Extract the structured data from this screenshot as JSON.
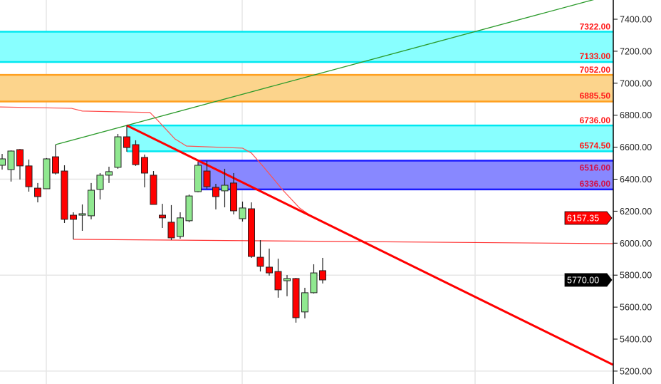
{
  "chart_data": {
    "type": "candlestick",
    "ylim": [
      5150,
      7500
    ],
    "y_ticks": [
      "7400.00",
      "7200.00",
      "7000.00",
      "6800.00",
      "6600.00",
      "6400.00",
      "6200.00",
      "6000.00",
      "5800.00",
      "5600.00",
      "5400.00",
      "5200.00"
    ],
    "grid": true,
    "colors": {
      "up": "#90e890",
      "down": "#ff0000",
      "zone_cyan": "#00ffff",
      "zone_orange": "#ffa500",
      "zone_blue": "#0000ff",
      "trend_green": "#2a9a2a",
      "trend_red": "#ff0000"
    },
    "candles": [
      {
        "o": 6487,
        "h": 6558,
        "l": 6460,
        "c": 6527
      },
      {
        "o": 6460,
        "h": 6580,
        "l": 6385,
        "c": 6576
      },
      {
        "o": 6585,
        "h": 6589,
        "l": 6398,
        "c": 6483
      },
      {
        "o": 6483,
        "h": 6523,
        "l": 6322,
        "c": 6353
      },
      {
        "o": 6344,
        "h": 6376,
        "l": 6255,
        "c": 6291
      },
      {
        "o": 6340,
        "h": 6532,
        "l": 6340,
        "c": 6527
      },
      {
        "o": 6540,
        "h": 6616,
        "l": 6429,
        "c": 6438
      },
      {
        "o": 6451,
        "h": 6487,
        "l": 6126,
        "c": 6149
      },
      {
        "o": 6175,
        "h": 6193,
        "l": 6024,
        "c": 6149
      },
      {
        "o": 6175,
        "h": 6242,
        "l": 6077,
        "c": 6184
      },
      {
        "o": 6171,
        "h": 6376,
        "l": 6149,
        "c": 6331
      },
      {
        "o": 6336,
        "h": 6438,
        "l": 6273,
        "c": 6425
      },
      {
        "o": 6425,
        "h": 6478,
        "l": 6376,
        "c": 6447
      },
      {
        "o": 6474,
        "h": 6683,
        "l": 6465,
        "c": 6665
      },
      {
        "o": 6665,
        "h": 6736,
        "l": 6572,
        "c": 6598
      },
      {
        "o": 6616,
        "h": 6643,
        "l": 6483,
        "c": 6491
      },
      {
        "o": 6536,
        "h": 6554,
        "l": 6349,
        "c": 6438
      },
      {
        "o": 6425,
        "h": 6451,
        "l": 6242,
        "c": 6242
      },
      {
        "o": 6175,
        "h": 6246,
        "l": 6095,
        "c": 6158
      },
      {
        "o": 6131,
        "h": 6238,
        "l": 6019,
        "c": 6033
      },
      {
        "o": 6042,
        "h": 6193,
        "l": 6028,
        "c": 6158
      },
      {
        "o": 6140,
        "h": 6304,
        "l": 6131,
        "c": 6295
      },
      {
        "o": 6322,
        "h": 6509,
        "l": 6318,
        "c": 6487
      },
      {
        "o": 6451,
        "h": 6514,
        "l": 6340,
        "c": 6353
      },
      {
        "o": 6349,
        "h": 6371,
        "l": 6211,
        "c": 6291
      },
      {
        "o": 6327,
        "h": 6465,
        "l": 6224,
        "c": 6362
      },
      {
        "o": 6376,
        "h": 6438,
        "l": 6180,
        "c": 6202
      },
      {
        "o": 6153,
        "h": 6260,
        "l": 6135,
        "c": 6220
      },
      {
        "o": 6215,
        "h": 6255,
        "l": 5908,
        "c": 5917
      },
      {
        "o": 5912,
        "h": 6019,
        "l": 5823,
        "c": 5855
      },
      {
        "o": 5850,
        "h": 5966,
        "l": 5797,
        "c": 5814
      },
      {
        "o": 5823,
        "h": 5903,
        "l": 5659,
        "c": 5708
      },
      {
        "o": 5765,
        "h": 5801,
        "l": 5668,
        "c": 5779
      },
      {
        "o": 5779,
        "h": 5783,
        "l": 5503,
        "c": 5534
      },
      {
        "o": 5570,
        "h": 5721,
        "l": 5530,
        "c": 5690
      },
      {
        "o": 5690,
        "h": 5868,
        "l": 5685,
        "c": 5814
      },
      {
        "o": 5828,
        "h": 5908,
        "l": 5748,
        "c": 5770
      }
    ],
    "zones": [
      {
        "low": 7133,
        "high": 7322,
        "start_bar": -1,
        "color": "cyan",
        "low_label": "7133.00",
        "high_label": "7322.00"
      },
      {
        "low": 6885.5,
        "high": 7052,
        "start_bar": -1,
        "color": "orange",
        "low_label": "6885.50",
        "high_label": "7052.00"
      },
      {
        "low": 6574.5,
        "high": 6736,
        "start_bar": 14,
        "color": "cyan",
        "low_label": "6574.50",
        "high_label": "6736.00"
      },
      {
        "low": 6336,
        "high": 6516,
        "start_bar": 22,
        "color": "blue",
        "low_label": "6336.00",
        "high_label": "6516.00"
      }
    ],
    "trendlines": [
      {
        "color": "green",
        "points": [
          [
            6,
            6616
          ],
          [
            14,
            6736
          ]
        ],
        "extend": true
      },
      {
        "color": "red",
        "width": "thick",
        "points": [
          [
            14,
            6736
          ],
          [
            68.6,
            5240
          ]
        ]
      },
      {
        "color": "red",
        "width": "thin",
        "points": [
          [
            8,
            6024
          ],
          [
            68.6,
            5997
          ]
        ]
      }
    ],
    "moving_average": {
      "points": [
        [
          -0.5,
          6852
        ],
        [
          7.8,
          6843
        ],
        [
          9,
          6826
        ],
        [
          16.6,
          6817
        ],
        [
          17.4,
          6772
        ],
        [
          19.4,
          6652
        ],
        [
          20.7,
          6607
        ],
        [
          27,
          6594
        ],
        [
          28,
          6563
        ],
        [
          29.4,
          6474
        ],
        [
          31.6,
          6327
        ],
        [
          33.4,
          6220
        ],
        [
          34.7,
          6170
        ]
      ],
      "last_value_label": "6157.35",
      "last_value": 6157.35
    },
    "last_price_label": "5770.00",
    "last_price": 5770
  }
}
